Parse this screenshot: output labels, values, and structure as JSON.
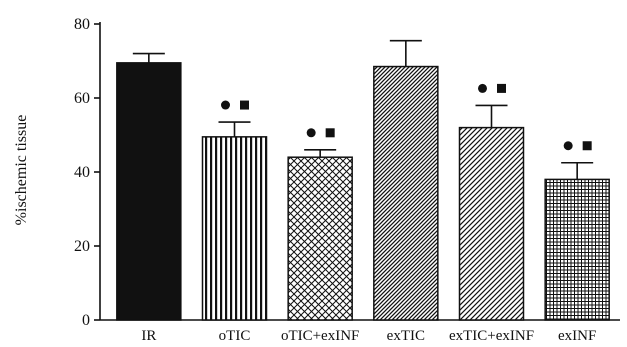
{
  "chart_data": {
    "type": "bar",
    "title": "",
    "xlabel": "",
    "ylabel": "%ischemic tissue",
    "ylim": [
      0,
      80
    ],
    "yticks": [
      0,
      20,
      40,
      60,
      80
    ],
    "grid": false,
    "categories": [
      "IR",
      "oTIC",
      "oTIC+exINF",
      "exTIC",
      "exTIC+exINF",
      "exINF"
    ],
    "values": [
      69.5,
      49.5,
      44,
      68.5,
      52,
      38
    ],
    "errors": [
      2.5,
      4,
      2,
      7,
      6,
      4.5
    ],
    "patterns": [
      "solid-black",
      "vertical-stripes",
      "crosshatch",
      "diagonal-dense",
      "diagonal-sparse",
      "grid"
    ],
    "markers": [
      {
        "category": "oTIC",
        "symbols": [
          "circle",
          "square"
        ]
      },
      {
        "category": "oTIC+exINF",
        "symbols": [
          "circle",
          "square"
        ]
      },
      {
        "category": "exTIC+exINF",
        "symbols": [
          "circle",
          "square"
        ]
      },
      {
        "category": "exINF",
        "symbols": [
          "circle",
          "square"
        ]
      }
    ]
  }
}
